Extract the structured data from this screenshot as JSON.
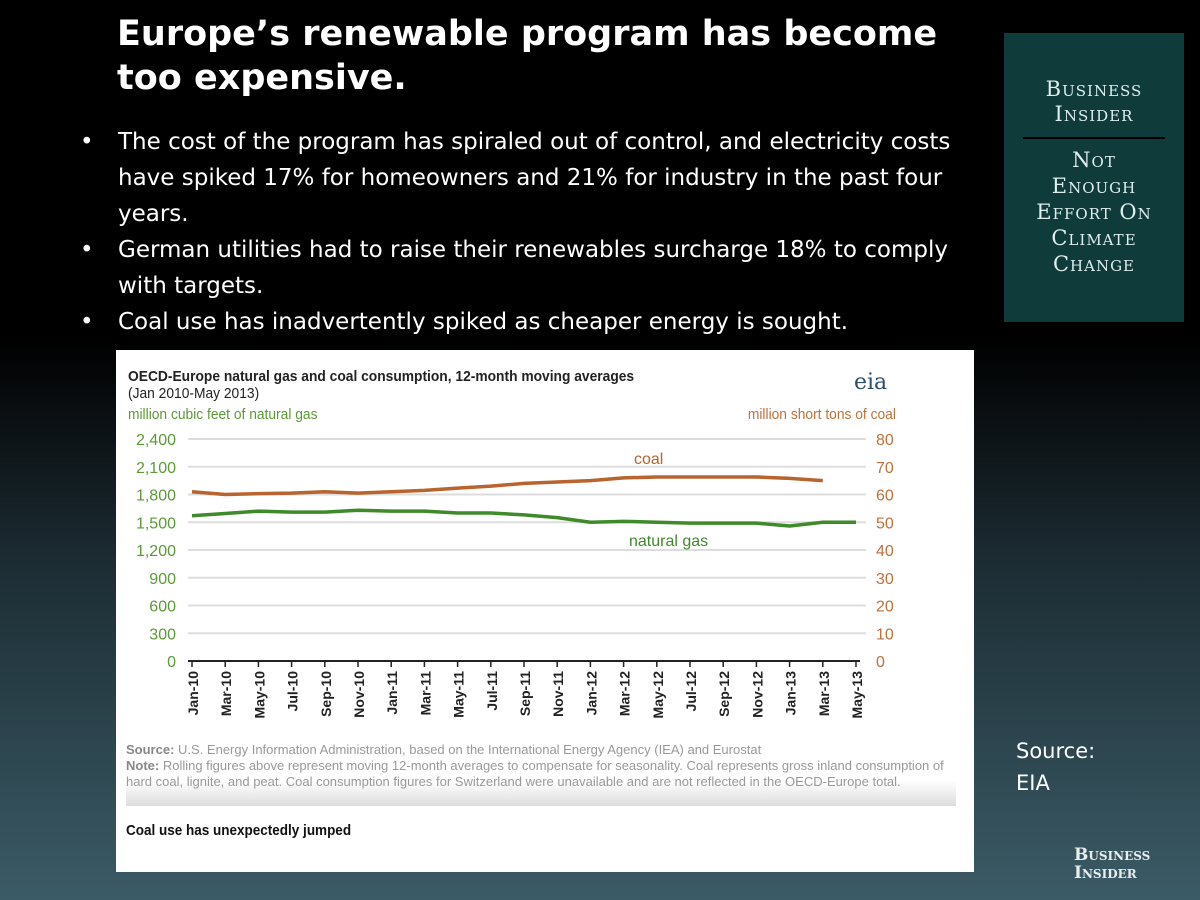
{
  "slide": {
    "title": "Europe’s renewable program has become too expensive.",
    "bullets": [
      "The cost of the program  has spiraled out of control, and electricity costs have spiked 17% for homeowners and 21% for industry in the past four years.",
      "German utilities had to raise their renewables surcharge 18% to comply with targets.",
      "Coal use has inadvertently spiked as cheaper energy is sought."
    ],
    "bullet_glyph": "•",
    "source_label": "Source:",
    "source_value": "EIA",
    "footer_logo": [
      "Business",
      "Insider"
    ]
  },
  "brand_box": {
    "top": [
      "Business",
      "Insider"
    ],
    "bottom": [
      "Not",
      "Enough",
      "Effort On",
      "Climate",
      "Change"
    ],
    "background": "#0f3b3a"
  },
  "chart_data": {
    "type": "line",
    "title": "OECD-Europe  natural gas and coal consumption, 12-month  moving averages",
    "subtitle": "(Jan 2010-May  2013)",
    "logo": "eia",
    "ylabel_left": "million cubic feet of natural gas",
    "ylabel_right": "million short tons of coal",
    "ylim_left": [
      0,
      2400
    ],
    "ylim_right": [
      0,
      80
    ],
    "yticks_left": [
      "0",
      "300",
      "600",
      "900",
      "1,200",
      "1,500",
      "1,800",
      "2,100",
      "2,400"
    ],
    "yticks_right": [
      "0",
      "10",
      "20",
      "30",
      "40",
      "50",
      "60",
      "70",
      "80"
    ],
    "grid": true,
    "categories": [
      "Jan-10",
      "Mar-10",
      "May-10",
      "Jul-10",
      "Sep-10",
      "Nov-10",
      "Jan-11",
      "Mar-11",
      "May-11",
      "Jul-11",
      "Sep-11",
      "Nov-11",
      "Jan-12",
      "Mar-12",
      "May-12",
      "Jul-12",
      "Sep-12",
      "Nov-12",
      "Jan-13",
      "Mar-13",
      "May-13"
    ],
    "series": [
      {
        "name": "coal",
        "axis": "right",
        "color": "#b8642e",
        "values": [
          61,
          60,
          60.3,
          60.5,
          61,
          60.5,
          61,
          61.5,
          62.3,
          63,
          64,
          64.5,
          65,
          66,
          66.3,
          66.3,
          66.3,
          66.3,
          65.8,
          65,
          null
        ]
      },
      {
        "name": "natural gas",
        "axis": "left",
        "color": "#3f8a2a",
        "values": [
          1570,
          1595,
          1620,
          1610,
          1610,
          1630,
          1620,
          1620,
          1600,
          1600,
          1580,
          1550,
          1500,
          1510,
          1500,
          1490,
          1490,
          1490,
          1460,
          1500,
          1500
        ]
      }
    ],
    "left_axis_color": "#5a9a35",
    "right_axis_color": "#c0703a",
    "source_label": "Source:",
    "source_text": " U.S. Energy Information Administration, based on the International Energy Agency (IEA) and Eurostat",
    "note_label": "Note:",
    "note_text": " Rolling figures above represent moving 12-month averages to compensate for seasonality. Coal represents gross inland consumption of hard coal, lignite, and peat. Coal consumption figures for Switzerland were unavailable and are not reflected in the OECD-Europe total.",
    "caption": "Coal use has unexpectedly jumped"
  }
}
